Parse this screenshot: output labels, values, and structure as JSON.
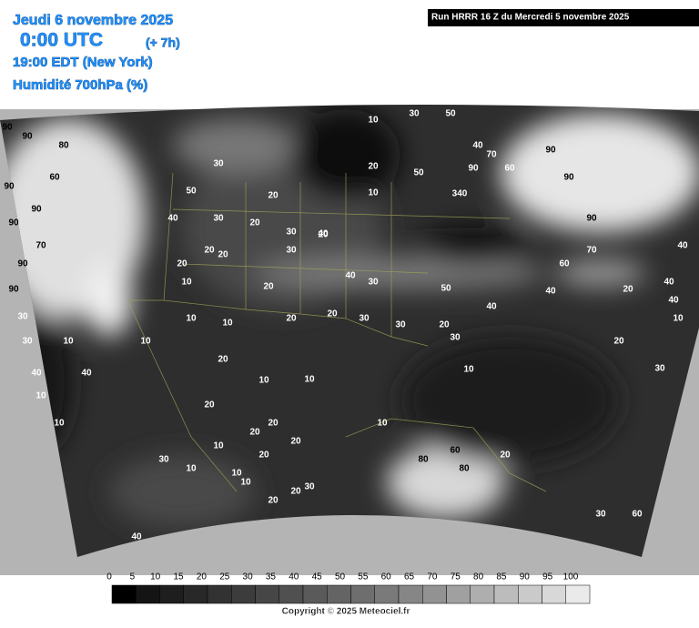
{
  "header": {
    "date": "Jeudi 6 novembre 2025",
    "utc": "0:00 UTC",
    "offset": "(+ 7h)",
    "local": "19:00 EDT (New York)",
    "field": "Humidité 700hPa (%)"
  },
  "run": "Run HRRR 16 Z du Mercredi 5 novembre 2025",
  "map": {
    "contour_labels": [
      "90",
      "90",
      "80",
      "90",
      "90",
      "60",
      "90",
      "70",
      "90",
      "90",
      "30",
      "10",
      "10",
      "40",
      "10",
      "10",
      "40",
      "50",
      "30",
      "20",
      "30",
      "20",
      "10",
      "20",
      "10",
      "20",
      "10",
      "40",
      "20",
      "10",
      "10",
      "10",
      "20",
      "10",
      "20",
      "30",
      "20",
      "10",
      "10",
      "30",
      "20",
      "340",
      "50",
      "40",
      "60",
      "90",
      "90",
      "90",
      "70",
      "60",
      "40",
      "20",
      "10",
      "30",
      "20",
      "10",
      "30",
      "40",
      "30",
      "40",
      "20",
      "10",
      "30",
      "20",
      "20",
      "20",
      "20",
      "90",
      "80",
      "60",
      "80",
      "70",
      "30",
      "60",
      "40",
      "30",
      "10",
      "20",
      "40",
      "50",
      "30",
      "20",
      "20",
      "10",
      "30",
      "50",
      "20",
      "20",
      "30",
      "40",
      "40",
      "20",
      "30",
      "40"
    ]
  },
  "colorbar": {
    "ticks": [
      0,
      5,
      10,
      15,
      20,
      25,
      30,
      35,
      40,
      45,
      50,
      55,
      60,
      65,
      70,
      75,
      80,
      85,
      90,
      95,
      100
    ],
    "colors": [
      "#000000",
      "#141414",
      "#1e1e1e",
      "#282828",
      "#323232",
      "#3c3c3c",
      "#464646",
      "#505050",
      "#5a5a5a",
      "#646464",
      "#6e6e6e",
      "#7a7a7a",
      "#868686",
      "#929292",
      "#a0a0a0",
      "#aeaeae",
      "#bcbcbc",
      "#cacaca",
      "#d8d8d8",
      "#eaeaea"
    ]
  },
  "copyright": "Copyright © 2025 Meteociel.fr"
}
